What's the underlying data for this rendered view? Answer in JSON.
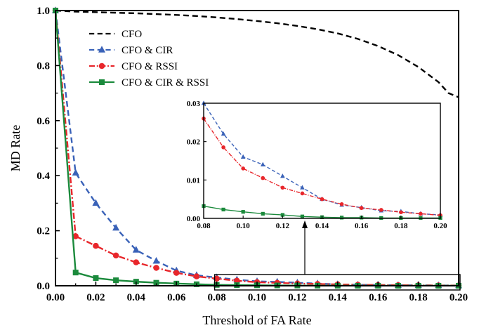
{
  "chart_data": [
    {
      "type": "line",
      "xlabel": "Threshold of FA Rate",
      "ylabel": "MD Rate",
      "xlim": [
        0,
        0.2
      ],
      "ylim": [
        0,
        1.0
      ],
      "xticks": [
        "0.00",
        "0.02",
        "0.04",
        "0.06",
        "0.08",
        "0.10",
        "0.12",
        "0.14",
        "0.16",
        "0.18",
        "0.20"
      ],
      "yticks": [
        "0.0",
        "0.2",
        "0.4",
        "0.6",
        "0.8",
        "1.0"
      ],
      "grid": false,
      "legend_position": "top-left",
      "x": [
        0,
        0.01,
        0.02,
        0.03,
        0.04,
        0.05,
        0.06,
        0.07,
        0.08,
        0.09,
        0.1,
        0.11,
        0.12,
        0.13,
        0.14,
        0.15,
        0.16,
        0.17,
        0.18,
        0.19,
        0.2
      ],
      "series": [
        {
          "name": "CFO",
          "color": "#000000",
          "dash": "dash",
          "marker": "none",
          "x": [
            0,
            0.005,
            0.01,
            0.02,
            0.03,
            0.04,
            0.05,
            0.06,
            0.07,
            0.08,
            0.09,
            0.1,
            0.11,
            0.12,
            0.13,
            0.14,
            0.15,
            0.16,
            0.17,
            0.18,
            0.19,
            0.195,
            0.2
          ],
          "values": [
            1.0,
            0.998,
            0.996,
            0.994,
            0.992,
            0.99,
            0.987,
            0.984,
            0.98,
            0.975,
            0.969,
            0.962,
            0.954,
            0.944,
            0.932,
            0.917,
            0.897,
            0.871,
            0.838,
            0.795,
            0.74,
            0.7,
            0.685
          ]
        },
        {
          "name": "CFO & CIR",
          "color": "#3a62b8",
          "dash": "dash",
          "marker": "triangle",
          "values": [
            1.0,
            0.41,
            0.3,
            0.21,
            0.13,
            0.09,
            0.055,
            0.038,
            0.03,
            0.022,
            0.016,
            0.014,
            0.011,
            0.008,
            0.005,
            0.0035,
            0.0028,
            0.002,
            0.0018,
            0.0012,
            0.0009
          ]
        },
        {
          "name": "CFO & RSSI",
          "color": "#e8262b",
          "dash": "dashdot",
          "marker": "circle",
          "values": [
            1.0,
            0.18,
            0.145,
            0.11,
            0.085,
            0.065,
            0.047,
            0.034,
            0.026,
            0.0185,
            0.013,
            0.0105,
            0.008,
            0.0065,
            0.005,
            0.0037,
            0.0027,
            0.0022,
            0.0016,
            0.0012,
            0.0008
          ]
        },
        {
          "name": "CFO & CIR & RSSI",
          "color": "#1b8a3c",
          "dash": "solid",
          "marker": "square",
          "values": [
            1.0,
            0.048,
            0.028,
            0.02,
            0.015,
            0.011,
            0.008,
            0.0055,
            0.0032,
            0.0023,
            0.0017,
            0.0012,
            0.0009,
            0.0005,
            0.0003,
            0.0002,
            0.0002,
            0.0001,
            0.0001,
            0.0001,
            0.0001
          ]
        }
      ]
    },
    {
      "type": "line",
      "inset": true,
      "xlim": [
        0.08,
        0.2
      ],
      "ylim": [
        0,
        0.03
      ],
      "xticks": [
        "0.08",
        "0.10",
        "0.12",
        "0.14",
        "0.16",
        "0.18",
        "0.20"
      ],
      "yticks": [
        "0.00",
        "0.01",
        "0.02",
        "0.03"
      ],
      "shows": "zoom of main chart for FA rate 0.08 to 0.20"
    }
  ]
}
